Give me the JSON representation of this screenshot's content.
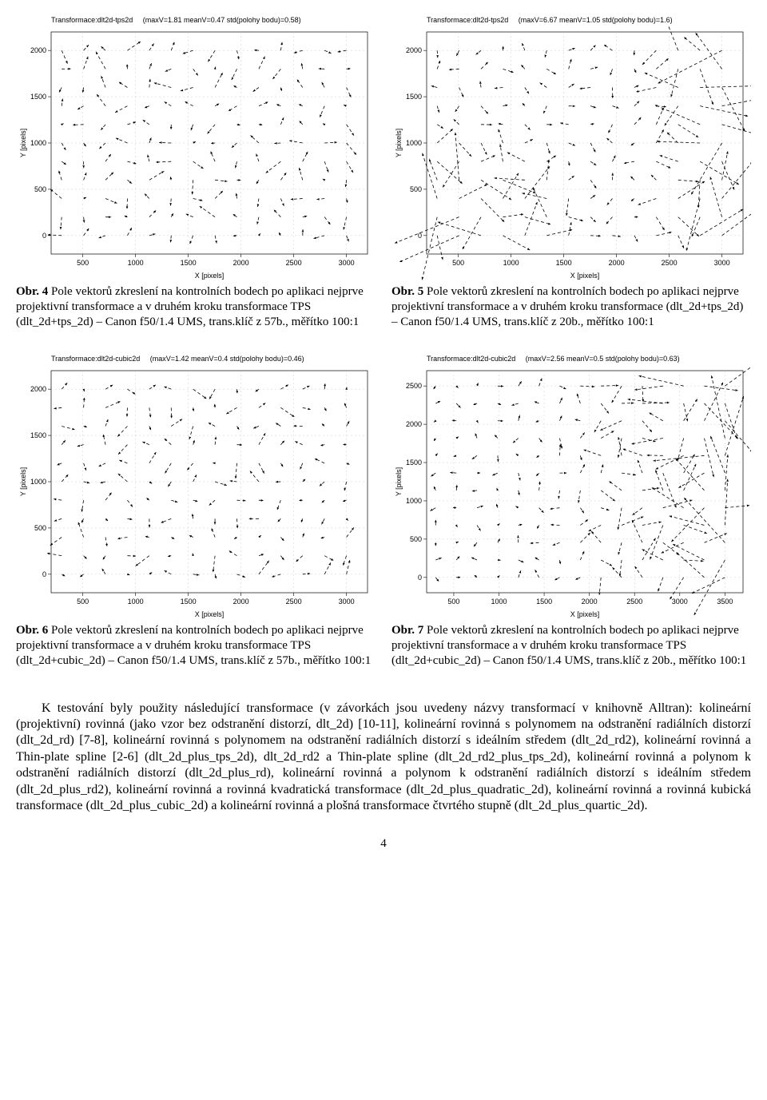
{
  "charts": [
    {
      "id": "c4",
      "title": "Transformace:dlt2d-tps2d     (maxV=1.81 meanV=0.47 std(polohy bodu)=0.58)",
      "xlabel": "X [pixels]",
      "ylabel": "Y [pixels]",
      "xlim": [
        200,
        3200
      ],
      "ylim": [
        -200,
        2200
      ],
      "xticks": [
        500,
        1000,
        1500,
        2000,
        2500,
        3000
      ],
      "yticks": [
        0,
        500,
        1000,
        1500,
        2000
      ],
      "bg": "#ffffff",
      "grid_color": "#c8c8c8",
      "axis_fontsize": 9,
      "nx": 14,
      "ny": 11,
      "seed": 41,
      "maxlen": 18,
      "style": "small"
    },
    {
      "id": "c5",
      "title": "Transformace:dlt2d-tps2d     (maxV=6.67 meanV=1.05 std(polohy bodu)=1.6)",
      "xlabel": "X [pixels]",
      "ylabel": "Y [pixels]",
      "xlim": [
        200,
        3200
      ],
      "ylim": [
        -200,
        2200
      ],
      "xticks": [
        500,
        1000,
        1500,
        2000,
        2500,
        3000
      ],
      "yticks": [
        0,
        500,
        1000,
        1500,
        2000
      ],
      "bg": "#ffffff",
      "grid_color": "#c8c8c8",
      "axis_fontsize": 9,
      "nx": 14,
      "ny": 11,
      "seed": 52,
      "maxlen": 60,
      "style": "burst"
    },
    {
      "id": "c6",
      "title": "Transformace:dlt2d-cubic2d     (maxV=1.42 meanV=0.4 std(polohy bodu)=0.46)",
      "xlabel": "X [pixels]",
      "ylabel": "Y [pixels]",
      "xlim": [
        200,
        3200
      ],
      "ylim": [
        -200,
        2200
      ],
      "xticks": [
        500,
        1000,
        1500,
        2000,
        2500,
        3000
      ],
      "yticks": [
        0,
        500,
        1000,
        1500,
        2000
      ],
      "bg": "#ffffff",
      "grid_color": "#c8c8c8",
      "axis_fontsize": 9,
      "nx": 14,
      "ny": 11,
      "seed": 63,
      "maxlen": 16,
      "style": "small"
    },
    {
      "id": "c7",
      "title": "Transformace:dlt2d-cubic2d     (maxV=2.56 meanV=0.5 std(polohy bodu)=0.63)",
      "xlabel": "X [pixels]",
      "ylabel": "Y [pixels]",
      "xlim": [
        200,
        3700
      ],
      "ylim": [
        -200,
        2700
      ],
      "xticks": [
        500,
        1000,
        1500,
        2000,
        2500,
        3000,
        3500
      ],
      "yticks": [
        0,
        500,
        1000,
        1500,
        2000,
        2500
      ],
      "bg": "#ffffff",
      "grid_color": "#c8c8c8",
      "axis_fontsize": 9,
      "nx": 15,
      "ny": 12,
      "seed": 74,
      "maxlen": 34,
      "style": "edge"
    }
  ],
  "captions": {
    "c4": {
      "label": "Obr. 4",
      "text": "  Pole vektorů zkreslení na kontrolních bodech po aplikaci nejprve projektivní transformace a v druhém kroku transformace TPS (dlt_2d+tps_2d) – Canon f50/1.4 UMS, trans.klíč z 57b., měřítko 100:1"
    },
    "c5": {
      "label": "Obr. 5",
      "text": "  Pole vektorů zkreslení na kontrolních bodech po aplikaci nejprve projektivní transformace a v druhém kroku transformace (dlt_2d+tps_2d) – Canon f50/1.4 UMS, trans.klíč z 20b., měřítko 100:1"
    },
    "c6": {
      "label": "Obr. 6",
      "text": "  Pole vektorů zkreslení na kontrolních bodech po aplikaci nejprve projektivní transformace a v druhém kroku transformace TPS (dlt_2d+cubic_2d) – Canon f50/1.4 UMS, trans.klíč z 57b., měřítko 100:1"
    },
    "c7": {
      "label": "Obr. 7",
      "text": "  Pole vektorů zkreslení na kontrolních bodech po aplikaci nejprve projektivní transformace a v druhém kroku transformace TPS (dlt_2d+cubic_2d) – Canon f50/1.4 UMS, trans.klíč z 20b., měřítko 100:1"
    }
  },
  "body": "K testování byly použity následující transformace (v závorkách jsou uvedeny názvy transformací v knihovně Alltran): kolineární (projektivní) rovinná (jako vzor bez odstranění distorzí, dlt_2d) [10-11], kolineární rovinná s polynomem na odstranění radiálních distorzí (dlt_2d_rd) [7-8], kolineární rovinná s polynomem na odstranění radiálních distorzí s ideálním středem (dlt_2d_rd2), kolineární rovinná a Thin-plate spline [2-6] (dlt_2d_plus_tps_2d), dlt_2d_rd2 a Thin-plate spline (dlt_2d_rd2_plus_tps_2d), kolineární rovinná a polynom k odstranění radiálních distorzí (dlt_2d_plus_rd), kolineární rovinná a polynom k odstranění radiálních distorzí s ideálním středem (dlt_2d_plus_rd2), kolineární rovinná a rovinná kvadratická transformace (dlt_2d_plus_quadratic_2d), kolineární rovinná a rovinná kubická transformace (dlt_2d_plus_cubic_2d) a kolineární rovinná a plošná transformace čtvrtého stupně (dlt_2d_plus_quartic_2d).",
  "page_number": "4"
}
